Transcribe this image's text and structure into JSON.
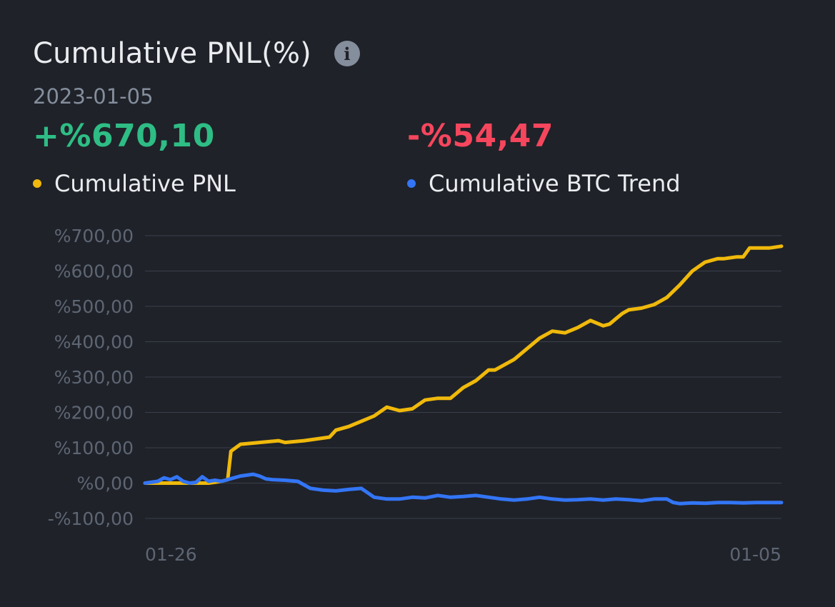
{
  "header": {
    "title": "Cumulative PNL(%)",
    "info_icon": "info-icon",
    "date": "2023-01-05"
  },
  "metrics": {
    "pnl_value": "+%670,10",
    "btc_value": "-%54,47"
  },
  "legend": {
    "pnl_label": "Cumulative PNL",
    "btc_label": "Cumulative BTC Trend"
  },
  "colors": {
    "pnl_line": "#f0b90b",
    "btc_line": "#3375f5",
    "positive": "#2ebd85",
    "negative": "#f6465d",
    "grid": "#3a3f49",
    "axis_text": "#5e6673"
  },
  "chart_data": {
    "type": "line",
    "x_tick_labels": [
      "01-26",
      "01-05"
    ],
    "y_tick_values": [
      -100,
      0,
      100,
      200,
      300,
      400,
      500,
      600,
      700
    ],
    "y_tick_labels": [
      "-%100,00",
      "%0,00",
      "%100,00",
      "%200,00",
      "%300,00",
      "%400,00",
      "%500,00",
      "%600,00",
      "%700,00"
    ],
    "ylim": [
      -100,
      700
    ],
    "grid": true,
    "x_index_range": [
      0,
      100
    ],
    "series": [
      {
        "name": "Cumulative PNL",
        "color": "#f0b90b",
        "x": [
          0,
          3,
          6,
          10,
          12,
          13,
          13.5,
          15,
          18,
          21,
          22,
          25,
          27,
          29,
          30,
          32,
          34,
          36,
          38,
          40,
          42,
          44,
          46,
          48,
          50,
          52,
          54,
          55,
          58,
          60,
          62,
          64,
          66,
          68,
          70,
          72,
          73,
          74,
          75,
          76,
          78,
          80,
          81,
          82,
          84,
          86,
          88,
          90,
          91,
          93,
          94,
          95,
          96,
          97,
          98,
          98.5,
          100
        ],
        "values": [
          0,
          0,
          0,
          0,
          5,
          10,
          90,
          110,
          115,
          120,
          115,
          120,
          125,
          130,
          150,
          160,
          175,
          190,
          215,
          205,
          210,
          235,
          240,
          240,
          270,
          290,
          320,
          320,
          350,
          380,
          410,
          430,
          425,
          440,
          460,
          445,
          450,
          465,
          480,
          490,
          495,
          505,
          515,
          525,
          560,
          600,
          625,
          635,
          635,
          640,
          640,
          665,
          665,
          665,
          665,
          666,
          670
        ]
      },
      {
        "name": "Cumulative BTC Trend",
        "color": "#3375f5",
        "x": [
          0,
          2,
          3,
          4,
          5,
          6,
          7,
          8,
          9,
          10,
          11,
          12,
          13,
          15,
          17,
          18,
          19,
          20,
          22,
          24,
          26,
          28,
          30,
          32,
          34,
          36,
          38,
          40,
          42,
          44,
          46,
          48,
          50,
          52,
          54,
          56,
          58,
          60,
          62,
          64,
          66,
          68,
          70,
          72,
          74,
          76,
          78,
          80,
          82,
          83,
          84,
          86,
          88,
          90,
          92,
          94,
          96,
          98,
          100
        ],
        "values": [
          0,
          5,
          15,
          10,
          18,
          5,
          0,
          2,
          18,
          5,
          8,
          5,
          10,
          20,
          25,
          20,
          12,
          10,
          8,
          5,
          -15,
          -20,
          -22,
          -18,
          -15,
          -40,
          -45,
          -45,
          -40,
          -42,
          -35,
          -40,
          -38,
          -35,
          -40,
          -45,
          -48,
          -45,
          -40,
          -45,
          -48,
          -47,
          -45,
          -48,
          -45,
          -47,
          -50,
          -45,
          -45,
          -55,
          -58,
          -56,
          -57,
          -55,
          -55,
          -56,
          -55,
          -55,
          -55
        ]
      }
    ]
  }
}
